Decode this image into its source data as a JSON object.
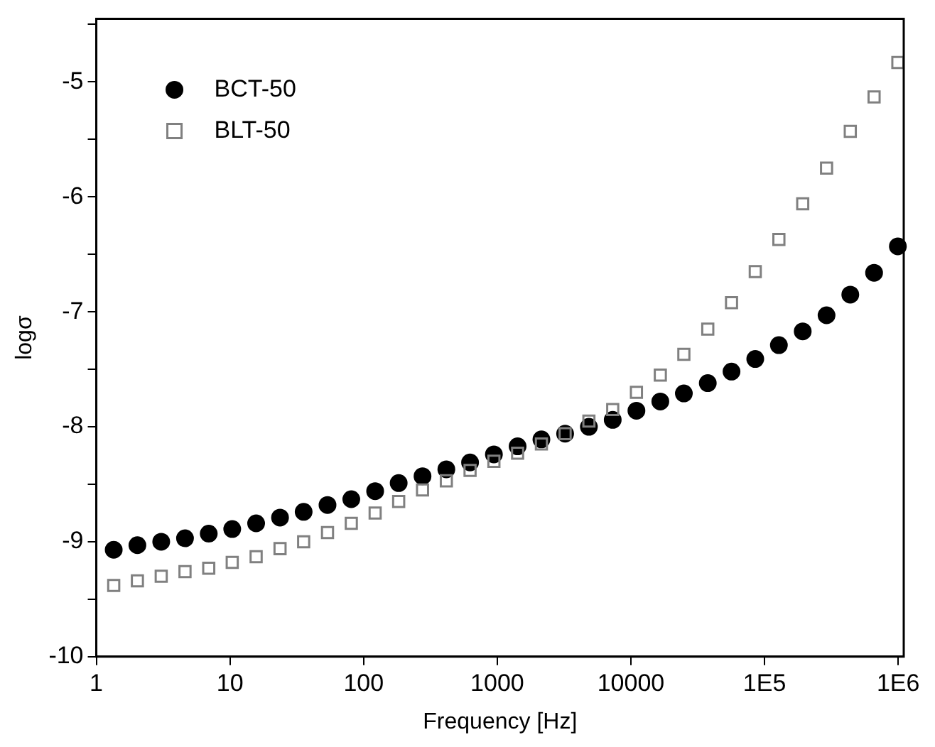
{
  "chart_data": {
    "type": "scatter",
    "xlabel": "Frequency [Hz]",
    "ylabel": "logσ",
    "log": "x",
    "grid": false,
    "legend": "top left",
    "x": [
      1.35,
      2.03,
      3.06,
      4.61,
      6.94,
      10.4,
      15.7,
      23.7,
      35.6,
      53.7,
      80.9,
      122,
      183,
      276,
      416,
      626,
      944,
      1420,
      2140,
      3220,
      4850,
      7310,
      11000,
      16600,
      24900,
      37600,
      56600,
      85200,
      128000,
      193000,
      291000,
      438000,
      660000,
      994000
    ],
    "xlim": [
      1,
      1100000
    ],
    "xticks": [
      {
        "value": 1,
        "label": "1"
      },
      {
        "value": 10,
        "label": "10"
      },
      {
        "value": 100,
        "label": "100"
      },
      {
        "value": 1000,
        "label": "1000"
      },
      {
        "value": 10000,
        "label": "10000"
      },
      {
        "value": 100000,
        "label": "1E5"
      },
      {
        "value": 1000000,
        "label": "1E6"
      }
    ],
    "ylim": [
      -10,
      -4.45
    ],
    "yticks": [
      -10,
      {
        "value": -9.5,
        "label": null
      },
      -9,
      {
        "value": -8.5,
        "label": null
      },
      -8,
      {
        "value": -7.5,
        "label": null
      },
      -7,
      {
        "value": -6.5,
        "label": null
      },
      -6,
      {
        "value": -5.5,
        "label": null
      },
      -5,
      {
        "value": -4.5,
        "label": null
      }
    ],
    "series": [
      {
        "name": "BCT-50",
        "color": "#000000",
        "marker": "circle",
        "values": [
          -9.07,
          -9.03,
          -9.0,
          -8.97,
          -8.93,
          -8.89,
          -8.84,
          -8.79,
          -8.74,
          -8.68,
          -8.63,
          -8.56,
          -8.49,
          -8.43,
          -8.37,
          -8.31,
          -8.24,
          -8.17,
          -8.11,
          -8.06,
          -8.0,
          -7.94,
          -7.86,
          -7.78,
          -7.71,
          -7.62,
          -7.52,
          -7.41,
          -7.29,
          -7.17,
          -7.03,
          -6.85,
          -6.66,
          -6.43
        ]
      },
      {
        "name": "BLT-50",
        "color": "#808080",
        "marker": "square",
        "values": [
          -9.38,
          -9.34,
          -9.3,
          -9.26,
          -9.23,
          -9.18,
          -9.13,
          -9.06,
          -9.0,
          -8.92,
          -8.84,
          -8.75,
          -8.65,
          -8.55,
          -8.47,
          -8.38,
          -8.3,
          -8.23,
          -8.15,
          -8.06,
          -7.95,
          -7.85,
          -7.7,
          -7.55,
          -7.37,
          -7.15,
          -6.92,
          -6.65,
          -6.37,
          -6.06,
          -5.75,
          -5.43,
          -5.13,
          -4.83
        ]
      }
    ]
  }
}
